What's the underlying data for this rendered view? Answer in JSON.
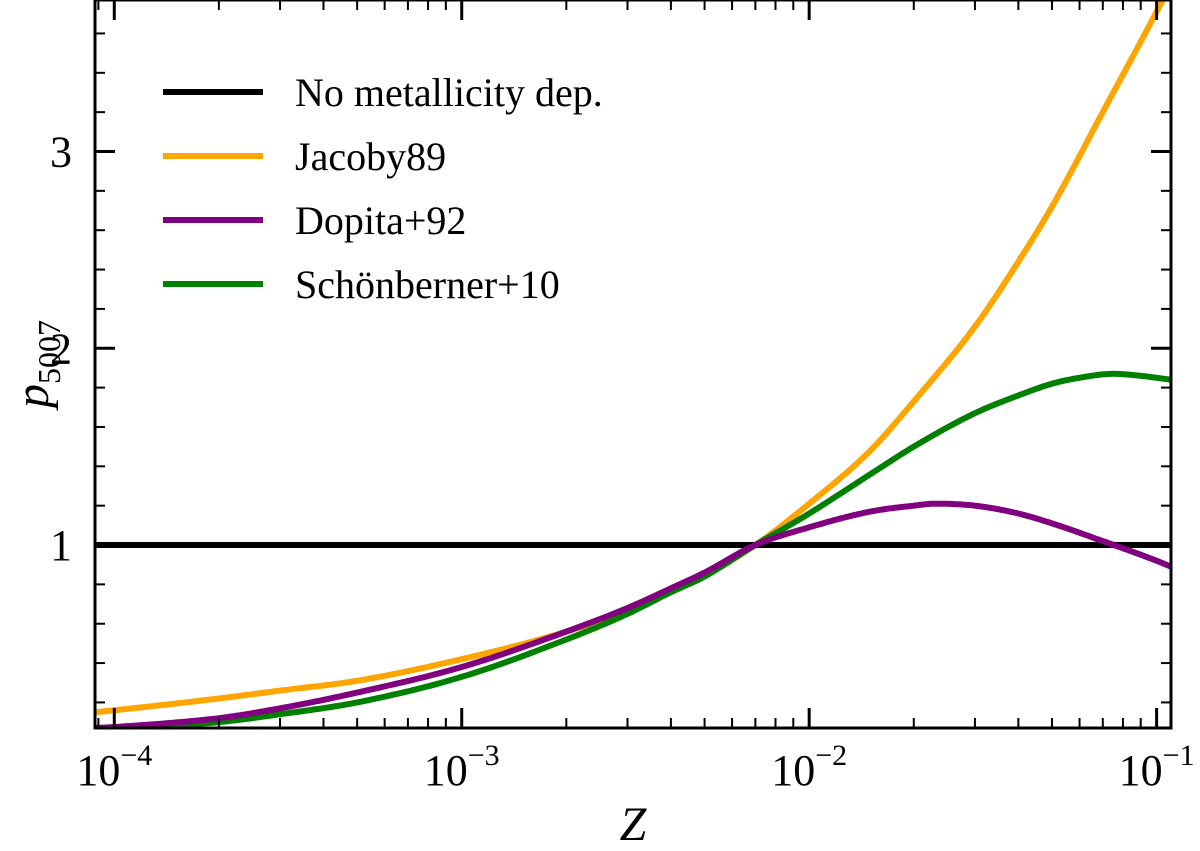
{
  "chart_data": {
    "type": "line",
    "title": "",
    "xlabel": "Z",
    "ylabel": "p",
    "ylabel_subscript": "5007",
    "xscale": "log",
    "xlim": [
      8.8e-05,
      0.11
    ],
    "ylim": [
      0.07,
      3.77
    ],
    "grid": false,
    "legend_position": "top-left",
    "xticks": [
      {
        "value": 0.0001,
        "base": "10",
        "exp": "−4"
      },
      {
        "value": 0.001,
        "base": "10",
        "exp": "−3"
      },
      {
        "value": 0.01,
        "base": "10",
        "exp": "−2"
      },
      {
        "value": 0.1,
        "base": "10",
        "exp": "−1"
      }
    ],
    "yticks": [
      {
        "value": 1,
        "label": "1"
      },
      {
        "value": 2,
        "label": "2"
      },
      {
        "value": 3,
        "label": "3"
      }
    ],
    "series": [
      {
        "name": "No metallicity dep.",
        "color": "#000000",
        "x": [
          8.8e-05,
          0.0001,
          0.0003,
          0.001,
          0.003,
          0.007,
          0.01,
          0.03,
          0.1,
          0.11
        ],
        "y": [
          1,
          1,
          1,
          1,
          1,
          1,
          1,
          1,
          1,
          1
        ]
      },
      {
        "name": "Jacoby89",
        "color": "#FFA500",
        "x": [
          8.8e-05,
          0.0001,
          0.0002,
          0.0003,
          0.0005,
          0.001,
          0.002,
          0.003,
          0.004,
          0.005,
          0.007,
          0.01,
          0.015,
          0.02,
          0.03,
          0.04,
          0.05,
          0.07,
          0.1,
          0.11
        ],
        "y": [
          0.15,
          0.16,
          0.22,
          0.26,
          0.31,
          0.42,
          0.56,
          0.67,
          0.77,
          0.85,
          1.0,
          1.21,
          1.48,
          1.73,
          2.11,
          2.44,
          2.72,
          3.2,
          3.71,
          3.85
        ]
      },
      {
        "name": "Dopita+92",
        "color": "#800080",
        "x": [
          8.8e-05,
          0.0001,
          0.0002,
          0.0003,
          0.0005,
          0.001,
          0.002,
          0.003,
          0.004,
          0.005,
          0.007,
          0.01,
          0.015,
          0.02,
          0.023,
          0.03,
          0.04,
          0.05,
          0.07,
          0.1,
          0.11
        ],
        "y": [
          0.07,
          0.075,
          0.12,
          0.17,
          0.25,
          0.38,
          0.56,
          0.68,
          0.78,
          0.86,
          1.0,
          1.09,
          1.17,
          1.2,
          1.21,
          1.2,
          1.16,
          1.11,
          1.02,
          0.92,
          0.89
        ]
      },
      {
        "name": "Schönberner+10",
        "color": "#008000",
        "x": [
          8.8e-05,
          0.0001,
          0.0002,
          0.0003,
          0.0005,
          0.001,
          0.002,
          0.003,
          0.004,
          0.005,
          0.007,
          0.01,
          0.015,
          0.02,
          0.03,
          0.04,
          0.05,
          0.06,
          0.075,
          0.09,
          0.11
        ],
        "y": [
          0.065,
          0.07,
          0.1,
          0.14,
          0.2,
          0.33,
          0.52,
          0.65,
          0.76,
          0.84,
          1.0,
          1.16,
          1.36,
          1.5,
          1.67,
          1.76,
          1.82,
          1.85,
          1.87,
          1.86,
          1.84
        ]
      }
    ]
  }
}
